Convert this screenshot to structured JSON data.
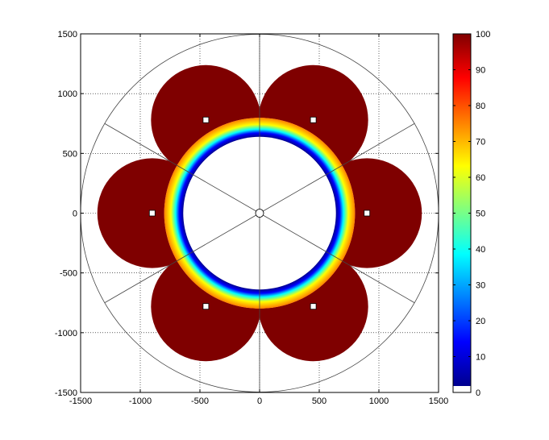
{
  "chart_data": {
    "type": "heatmap",
    "title": "",
    "xlabel": "",
    "ylabel": "",
    "xlim": [
      -1500,
      1500
    ],
    "ylim": [
      -1500,
      1500
    ],
    "x_ticks": [
      "-1500",
      "-1000",
      "-500",
      "0",
      "500",
      "1000",
      "1500"
    ],
    "y_ticks": [
      "1500",
      "1000",
      "500",
      "0",
      "-500",
      "-1000",
      "-1500"
    ],
    "x_tick_values": [
      -1500,
      -1000,
      -500,
      0,
      500,
      1000,
      1500
    ],
    "y_tick_values": [
      1500,
      1000,
      500,
      0,
      -500,
      -1000,
      -1500
    ],
    "grid": true,
    "outer_circle_radius": 1500,
    "inner_circle_radius": 800,
    "lobe_radius": 460,
    "lobe_center_distance": 900,
    "lobe_angles_deg": [
      0,
      60,
      120,
      180,
      240,
      300
    ],
    "sector_line_angles_deg": [
      30,
      90,
      150,
      210,
      270,
      330
    ],
    "markers": [
      {
        "x": 450,
        "y": 780
      },
      {
        "x": -450,
        "y": 780
      },
      {
        "x": 900,
        "y": 0
      },
      {
        "x": -900,
        "y": 0
      },
      {
        "x": 450,
        "y": -780
      },
      {
        "x": -450,
        "y": -780
      }
    ],
    "center_marker": {
      "x": 0,
      "y": 0
    },
    "lobe_value": 100,
    "colorbar": {
      "colormap": "jet",
      "min": 0,
      "max": 100,
      "tick_values": [
        0,
        10,
        20,
        30,
        40,
        50,
        60,
        70,
        80,
        90,
        100
      ],
      "tick_labels": [
        "0",
        "10",
        "20",
        "30",
        "40",
        "50",
        "60",
        "70",
        "80",
        "90",
        "100"
      ],
      "bottom_band_color": "#ffffff"
    },
    "colors": {
      "lobe": "#7f0000",
      "line": "#000000",
      "grid": "#000000"
    }
  }
}
